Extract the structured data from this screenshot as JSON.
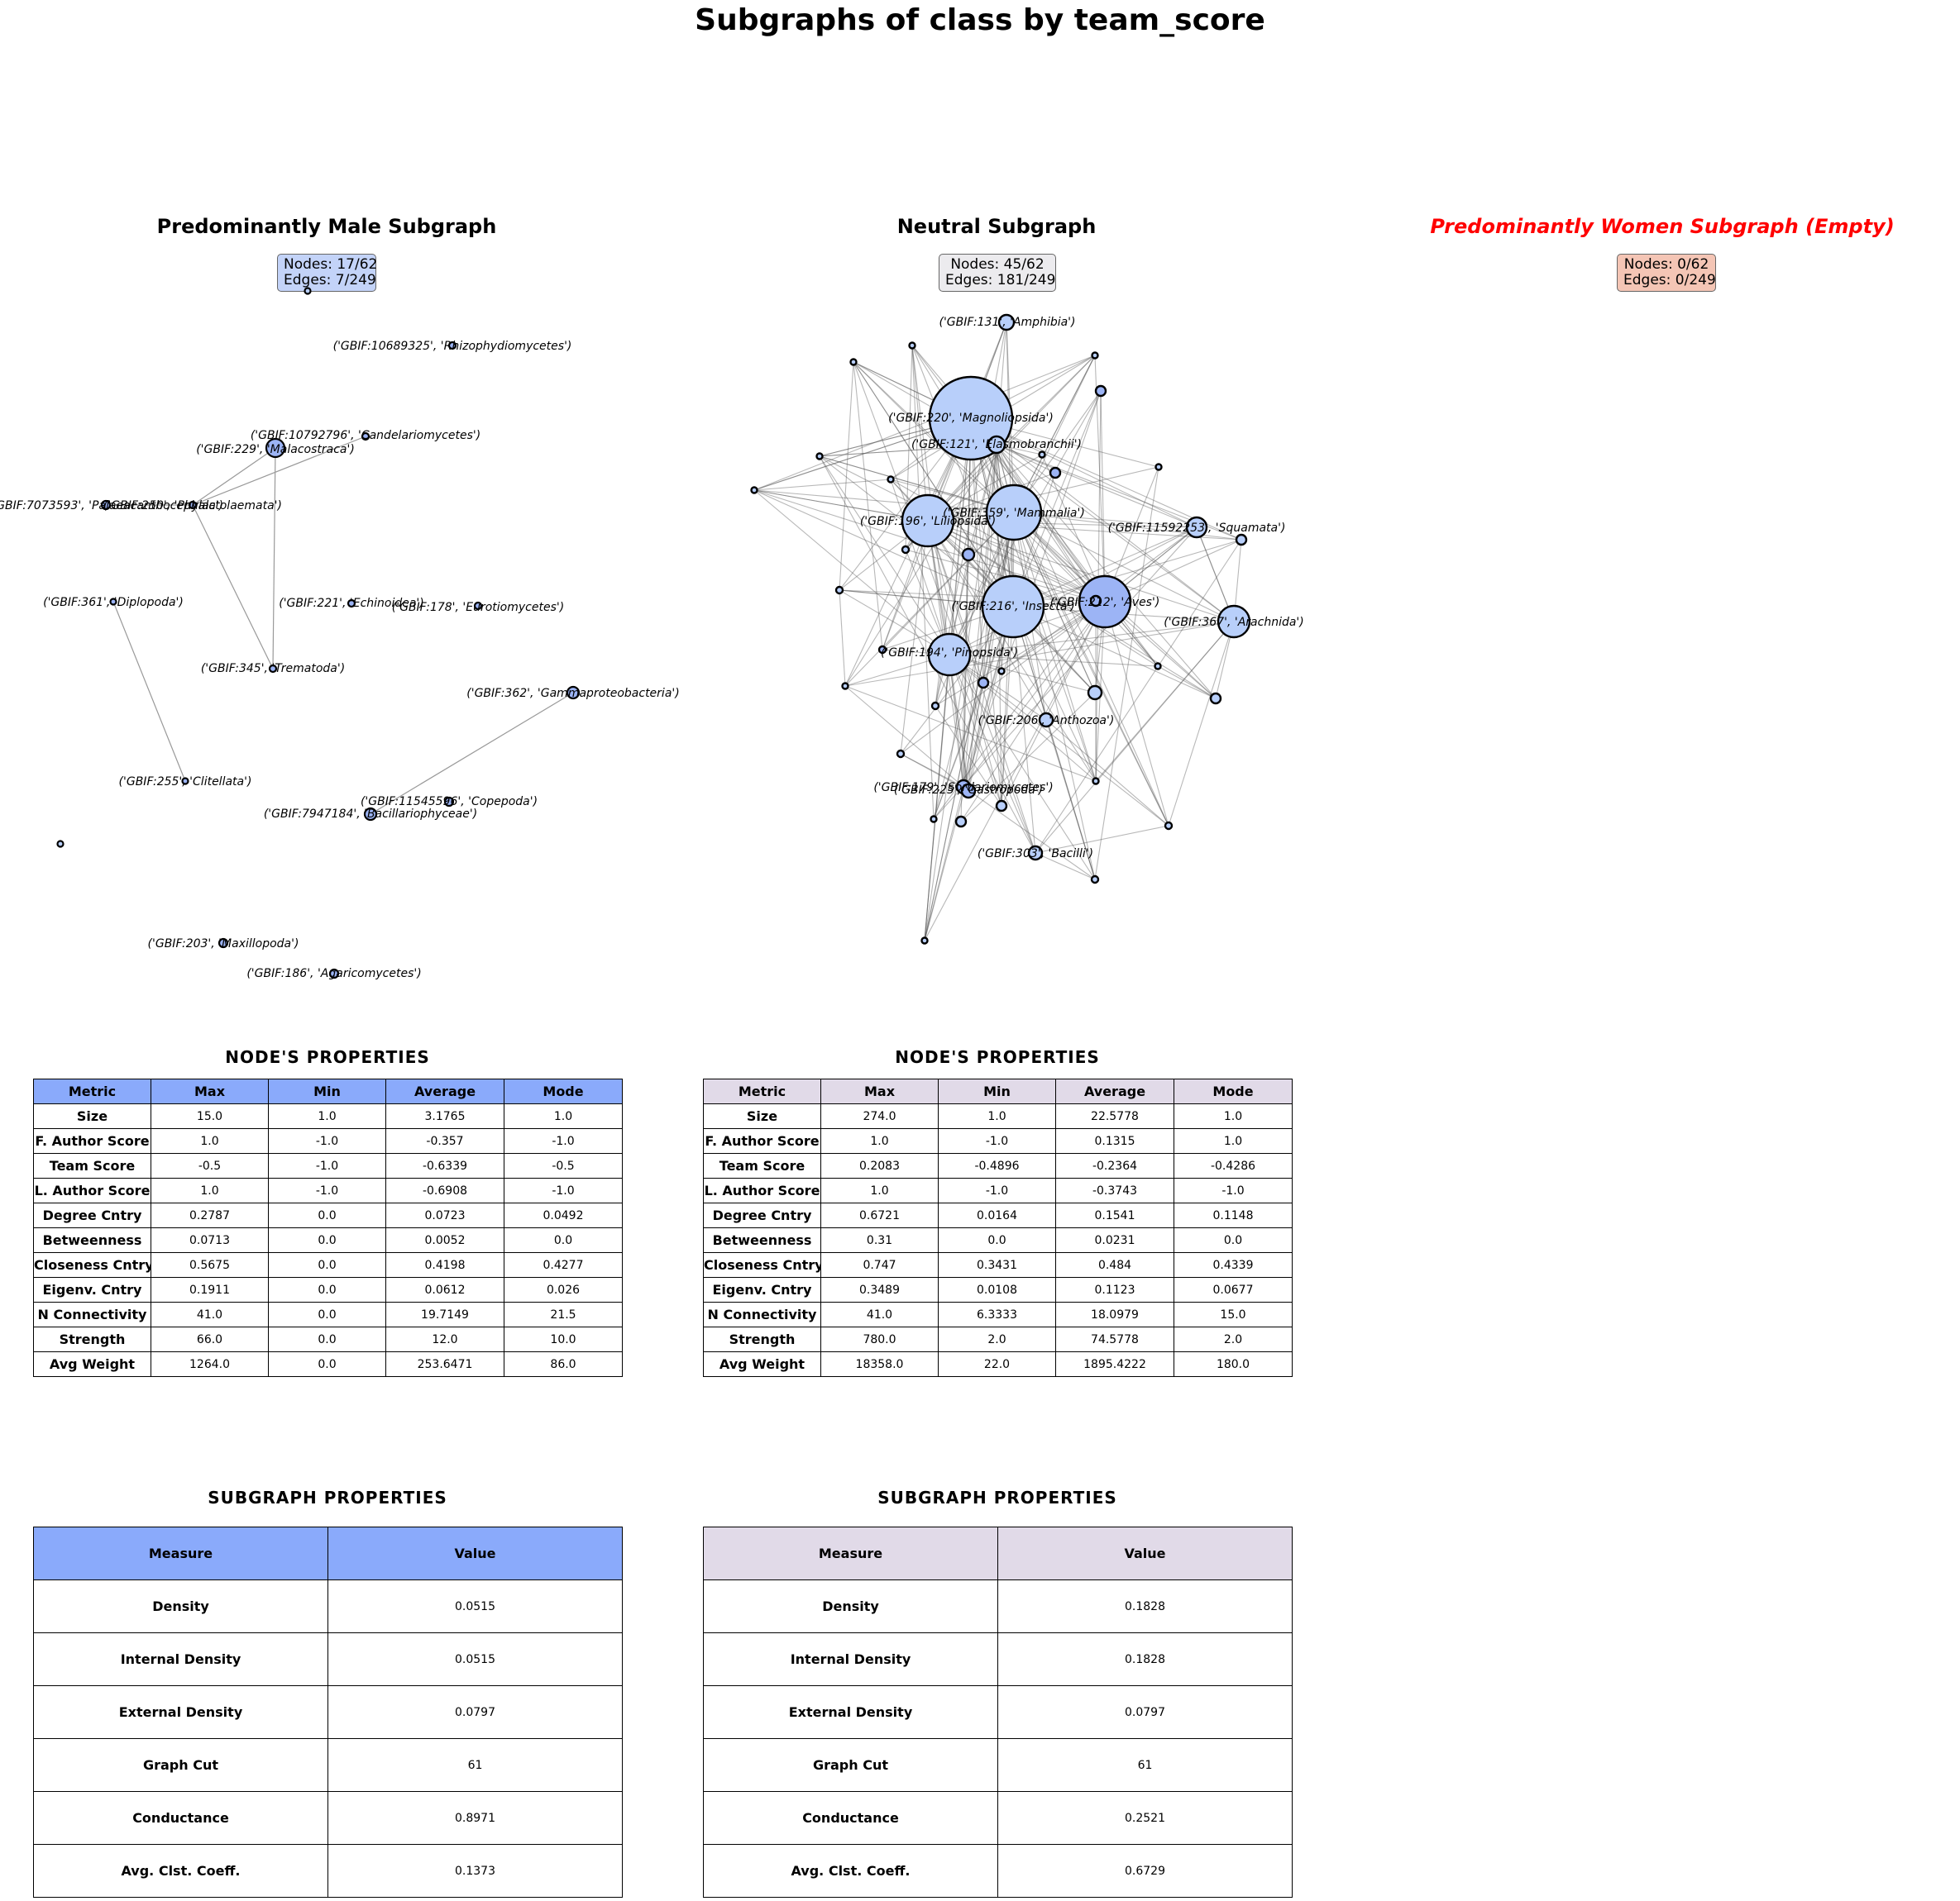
{
  "title": "Subgraphs of class by team_score",
  "colors": {
    "male": "#8aaafb",
    "neutral": "#e1dae8",
    "women": "#f4c5b5",
    "women_title": "#ff0000",
    "node_light": "#b8cffa",
    "node_mid": "#9cb4f5"
  },
  "panels": {
    "male": {
      "title": "Predominantly Male Subgraph",
      "nodes": "Nodes: 17/62",
      "edges": "Edges: 7/249"
    },
    "neutral": {
      "title": "Neutral Subgraph",
      "nodes": "Nodes: 45/62",
      "edges": "Edges: 181/249"
    },
    "women": {
      "title": "Predominantly Women Subgraph (Empty)",
      "nodes": "Nodes: 0/62",
      "edges": "Edges: 0/249"
    }
  },
  "male_graph": {
    "labels": [
      "('GBIF:10689325', 'Rhizophydiomycetes')",
      "('GBIF:10792796', 'Candelariomycetes')",
      "('GBIF:229', 'Malacostraca')",
      "('GBIF:7073593', 'Palaeacanthocephala')",
      "('GBIF:250', 'Phylactolaemata')",
      "('GBIF:361', 'Diplopoda')",
      "('GBIF:221', 'Echinoidea')",
      "('GBIF:178', 'Eurotiomycetes')",
      "('GBIF:345', 'Trematoda')",
      "('GBIF:362', 'Gammaproteobacteria')",
      "('GBIF:255', 'Clitellata')",
      "('GBIF:11545596', 'Copepoda')",
      "('GBIF:7947184', 'Bacillariophyceae')",
      "('GBIF:203', 'Maxillopoda')",
      "('GBIF:186', 'Agaricomycetes')"
    ]
  },
  "neutral_graph": {
    "labels": [
      "('GBIF:131', 'Amphibia')",
      "('GBIF:220', 'Magnoliopsida')",
      "('GBIF:121', 'Elasmobranchii')",
      "('GBIF:196', 'Liliopsida')",
      "('GBIF:359', 'Mammalia')",
      "('GBIF:11592253', 'Squamata')",
      "('GBIF:216', 'Insecta')",
      "('GBIF:212', 'Aves')",
      "('GBIF:367', 'Arachnida')",
      "('GBIF:194', 'Pinopsida')",
      "('GBIF:206', 'Anthozoa')",
      "('GBIF:179', 'Sordariomycetes')",
      "('GBIF:225', 'Gastropoda')",
      "('GBIF:303', 'Bacilli')"
    ]
  },
  "node_props": {
    "title": "NODE'S  PROPERTIES",
    "headers": [
      "Metric",
      "Max",
      "Min",
      "Average",
      "Mode"
    ],
    "metrics": [
      "Size",
      "F. Author Score",
      "Team Score",
      "L. Author Score",
      "Degree Cntry",
      "Betweenness",
      "Closeness Cntry",
      "Eigenv. Cntry",
      "N Connectivity",
      "Strength",
      "Avg Weight"
    ],
    "male": [
      [
        "15.0",
        "1.0",
        "3.1765",
        "1.0"
      ],
      [
        "1.0",
        "-1.0",
        "-0.357",
        "-1.0"
      ],
      [
        "-0.5",
        "-1.0",
        "-0.6339",
        "-0.5"
      ],
      [
        "1.0",
        "-1.0",
        "-0.6908",
        "-1.0"
      ],
      [
        "0.2787",
        "0.0",
        "0.0723",
        "0.0492"
      ],
      [
        "0.0713",
        "0.0",
        "0.0052",
        "0.0"
      ],
      [
        "0.5675",
        "0.0",
        "0.4198",
        "0.4277"
      ],
      [
        "0.1911",
        "0.0",
        "0.0612",
        "0.026"
      ],
      [
        "41.0",
        "0.0",
        "19.7149",
        "21.5"
      ],
      [
        "66.0",
        "0.0",
        "12.0",
        "10.0"
      ],
      [
        "1264.0",
        "0.0",
        "253.6471",
        "86.0"
      ]
    ],
    "neutral": [
      [
        "274.0",
        "1.0",
        "22.5778",
        "1.0"
      ],
      [
        "1.0",
        "-1.0",
        "0.1315",
        "1.0"
      ],
      [
        "0.2083",
        "-0.4896",
        "-0.2364",
        "-0.4286"
      ],
      [
        "1.0",
        "-1.0",
        "-0.3743",
        "-1.0"
      ],
      [
        "0.6721",
        "0.0164",
        "0.1541",
        "0.1148"
      ],
      [
        "0.31",
        "0.0",
        "0.0231",
        "0.0"
      ],
      [
        "0.747",
        "0.3431",
        "0.484",
        "0.4339"
      ],
      [
        "0.3489",
        "0.0108",
        "0.1123",
        "0.0677"
      ],
      [
        "41.0",
        "6.3333",
        "18.0979",
        "15.0"
      ],
      [
        "780.0",
        "2.0",
        "74.5778",
        "2.0"
      ],
      [
        "18358.0",
        "22.0",
        "1895.4222",
        "180.0"
      ]
    ]
  },
  "subgraph_props": {
    "title": "SUBGRAPH  PROPERTIES",
    "headers": [
      "Measure",
      "Value"
    ],
    "measures": [
      "Density",
      "Internal Density",
      "External Density",
      "Graph Cut",
      "Conductance",
      "Avg. Clst. Coeff."
    ],
    "male": [
      "0.0515",
      "0.0515",
      "0.0797",
      "61",
      "0.8971",
      "0.1373"
    ],
    "neutral": [
      "0.1828",
      "0.1828",
      "0.0797",
      "61",
      "0.2521",
      "0.6729"
    ]
  }
}
